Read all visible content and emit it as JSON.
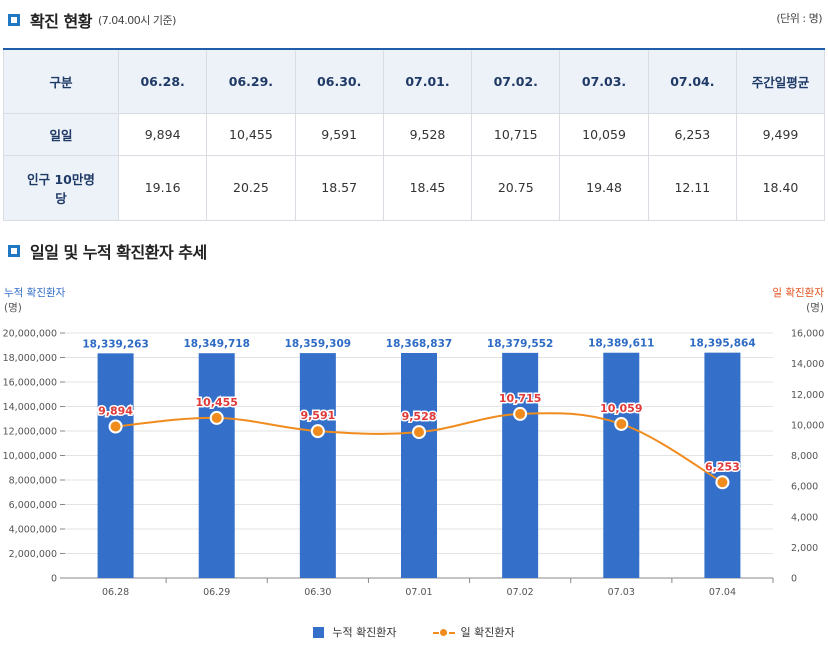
{
  "section1": {
    "title": "확진 현황",
    "subtitle": "(7.04.00시 기준)",
    "unit": "(단위 : 명)"
  },
  "table": {
    "header": [
      "구분",
      "06.28.",
      "06.29.",
      "06.30.",
      "07.01.",
      "07.02.",
      "07.03.",
      "07.04.",
      "주간일평균"
    ],
    "rows": [
      {
        "label": "일일",
        "cells": [
          "9,894",
          "10,455",
          "9,591",
          "9,528",
          "10,715",
          "10,059",
          "6,253",
          "9,499"
        ]
      },
      {
        "label": "인구 10만명당",
        "cells": [
          "19.16",
          "20.25",
          "18.57",
          "18.45",
          "20.75",
          "19.48",
          "12.11",
          "18.40"
        ]
      }
    ]
  },
  "section2": {
    "title": "일일 및 누적 확진환자 추세"
  },
  "chart_data": {
    "type": "bar",
    "categories": [
      "06.28",
      "06.29",
      "06.30",
      "07.01",
      "07.02",
      "07.03",
      "07.04"
    ],
    "series": [
      {
        "name": "누적 확진환자",
        "type": "bar",
        "axis": "left",
        "color": "#3470c9",
        "values": [
          18339263,
          18349718,
          18359309,
          18368837,
          18379552,
          18389611,
          18395864
        ],
        "labels": [
          "18,339,263",
          "18,349,718",
          "18,359,309",
          "18,368,837",
          "18,379,552",
          "18,389,611",
          "18,395,864"
        ]
      },
      {
        "name": "일 확진환자",
        "type": "line",
        "axis": "right",
        "color": "#f08c1e",
        "values": [
          9894,
          10455,
          9591,
          9528,
          10715,
          10059,
          6253
        ],
        "labels": [
          "9,894",
          "10,455",
          "9,591",
          "9,528",
          "10,715",
          "10,059",
          "6,253"
        ]
      }
    ],
    "left_axis": {
      "label": "누적 확진환자",
      "unit": "(명)",
      "ylim": [
        0,
        20000000
      ],
      "ticks": [
        "0",
        "2,000,000",
        "4,000,000",
        "6,000,000",
        "8,000,000",
        "10,000,000",
        "12,000,000",
        "14,000,000",
        "16,000,000",
        "18,000,000",
        "20,000,000"
      ]
    },
    "right_axis": {
      "label": "일 확진환자",
      "unit": "(명)",
      "ylim": [
        0,
        16000
      ],
      "ticks": [
        "0",
        "2,000",
        "4,000",
        "6,000",
        "8,000",
        "10,000",
        "12,000",
        "14,000",
        "16,000"
      ]
    },
    "grid": true,
    "legend": "bottom-center",
    "label_color": "#e03a3a"
  }
}
